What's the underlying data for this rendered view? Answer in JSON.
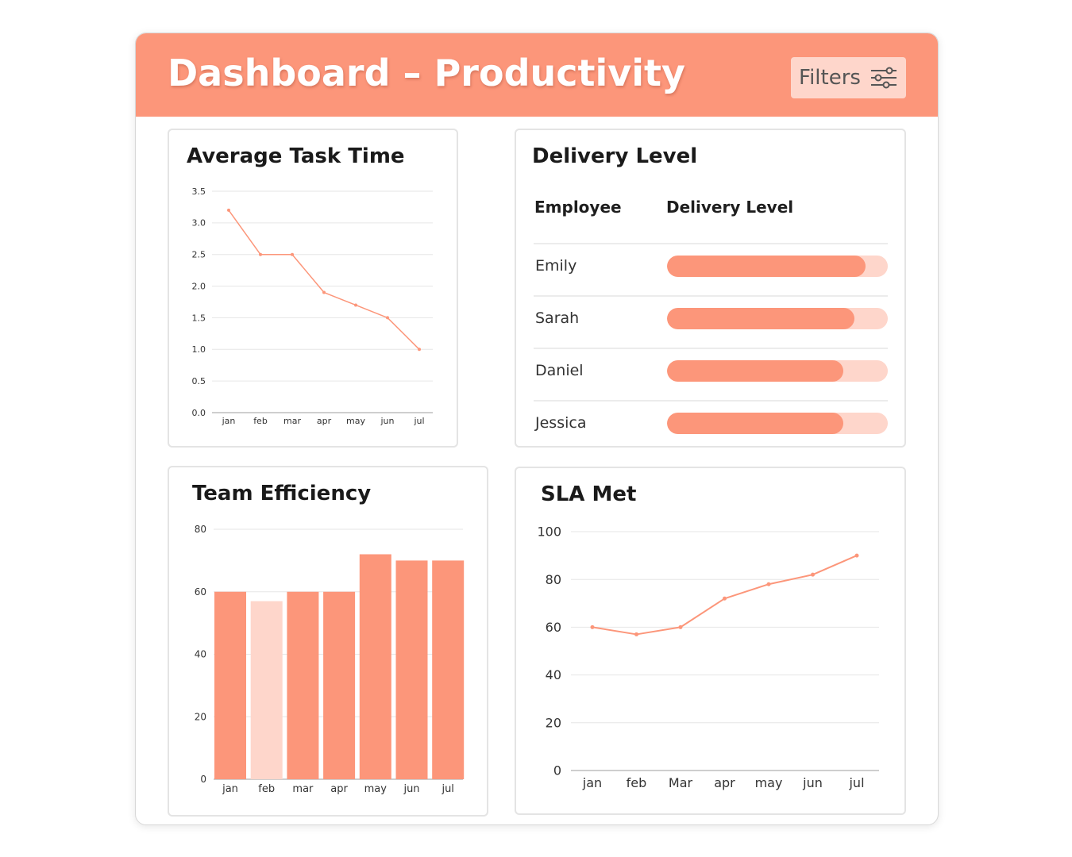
{
  "header": {
    "title": "Dashboard – Productivity",
    "filters_label": "Filters",
    "filters_icon": "sliders-icon"
  },
  "colors": {
    "accent": "#fc967a",
    "accent_light": "#fed6cb",
    "text": "#1a1a1a",
    "grid": "#e6e6e6"
  },
  "cards": {
    "avg_task_time": {
      "title": "Average Task Time"
    },
    "delivery_level": {
      "title": "Delivery Level",
      "col_employee": "Employee",
      "col_level": "Delivery Level",
      "rows": [
        {
          "name": "Emily",
          "level": 0.9
        },
        {
          "name": "Sarah",
          "level": 0.85
        },
        {
          "name": "Daniel",
          "level": 0.8
        },
        {
          "name": "Jessica",
          "level": 0.8
        }
      ]
    },
    "team_efficiency": {
      "title": "Team Efficiency"
    },
    "sla_met": {
      "title": "SLA Met"
    }
  },
  "chart_data": [
    {
      "type": "line",
      "title": "Average Task Time",
      "categories": [
        "jan",
        "feb",
        "mar",
        "apr",
        "may",
        "jun",
        "jul"
      ],
      "values": [
        3.2,
        2.5,
        2.5,
        1.9,
        1.7,
        1.5,
        1.0
      ],
      "yticks": [
        "0.0",
        "0.5",
        "1.0",
        "1.5",
        "2.0",
        "2.5",
        "3.0",
        "3.5"
      ],
      "ylim": [
        0,
        3.5
      ],
      "grid": true
    },
    {
      "type": "bar",
      "title": "Team Efficiency",
      "categories": [
        "jan",
        "feb",
        "mar",
        "apr",
        "may",
        "jun",
        "jul"
      ],
      "values": [
        60,
        57,
        60,
        60,
        72,
        70,
        70
      ],
      "highlight_index": 1,
      "yticks": [
        "0",
        "20",
        "40",
        "60",
        "80"
      ],
      "ylim": [
        0,
        80
      ],
      "grid": true
    },
    {
      "type": "line",
      "title": "SLA Met",
      "categories": [
        "jan",
        "feb",
        "Mar",
        "apr",
        "may",
        "jun",
        "jul"
      ],
      "values": [
        60,
        57,
        60,
        72,
        78,
        82,
        90
      ],
      "yticks": [
        "0",
        "20",
        "40",
        "60",
        "80",
        "100"
      ],
      "ylim": [
        0,
        100
      ],
      "grid": true
    }
  ]
}
